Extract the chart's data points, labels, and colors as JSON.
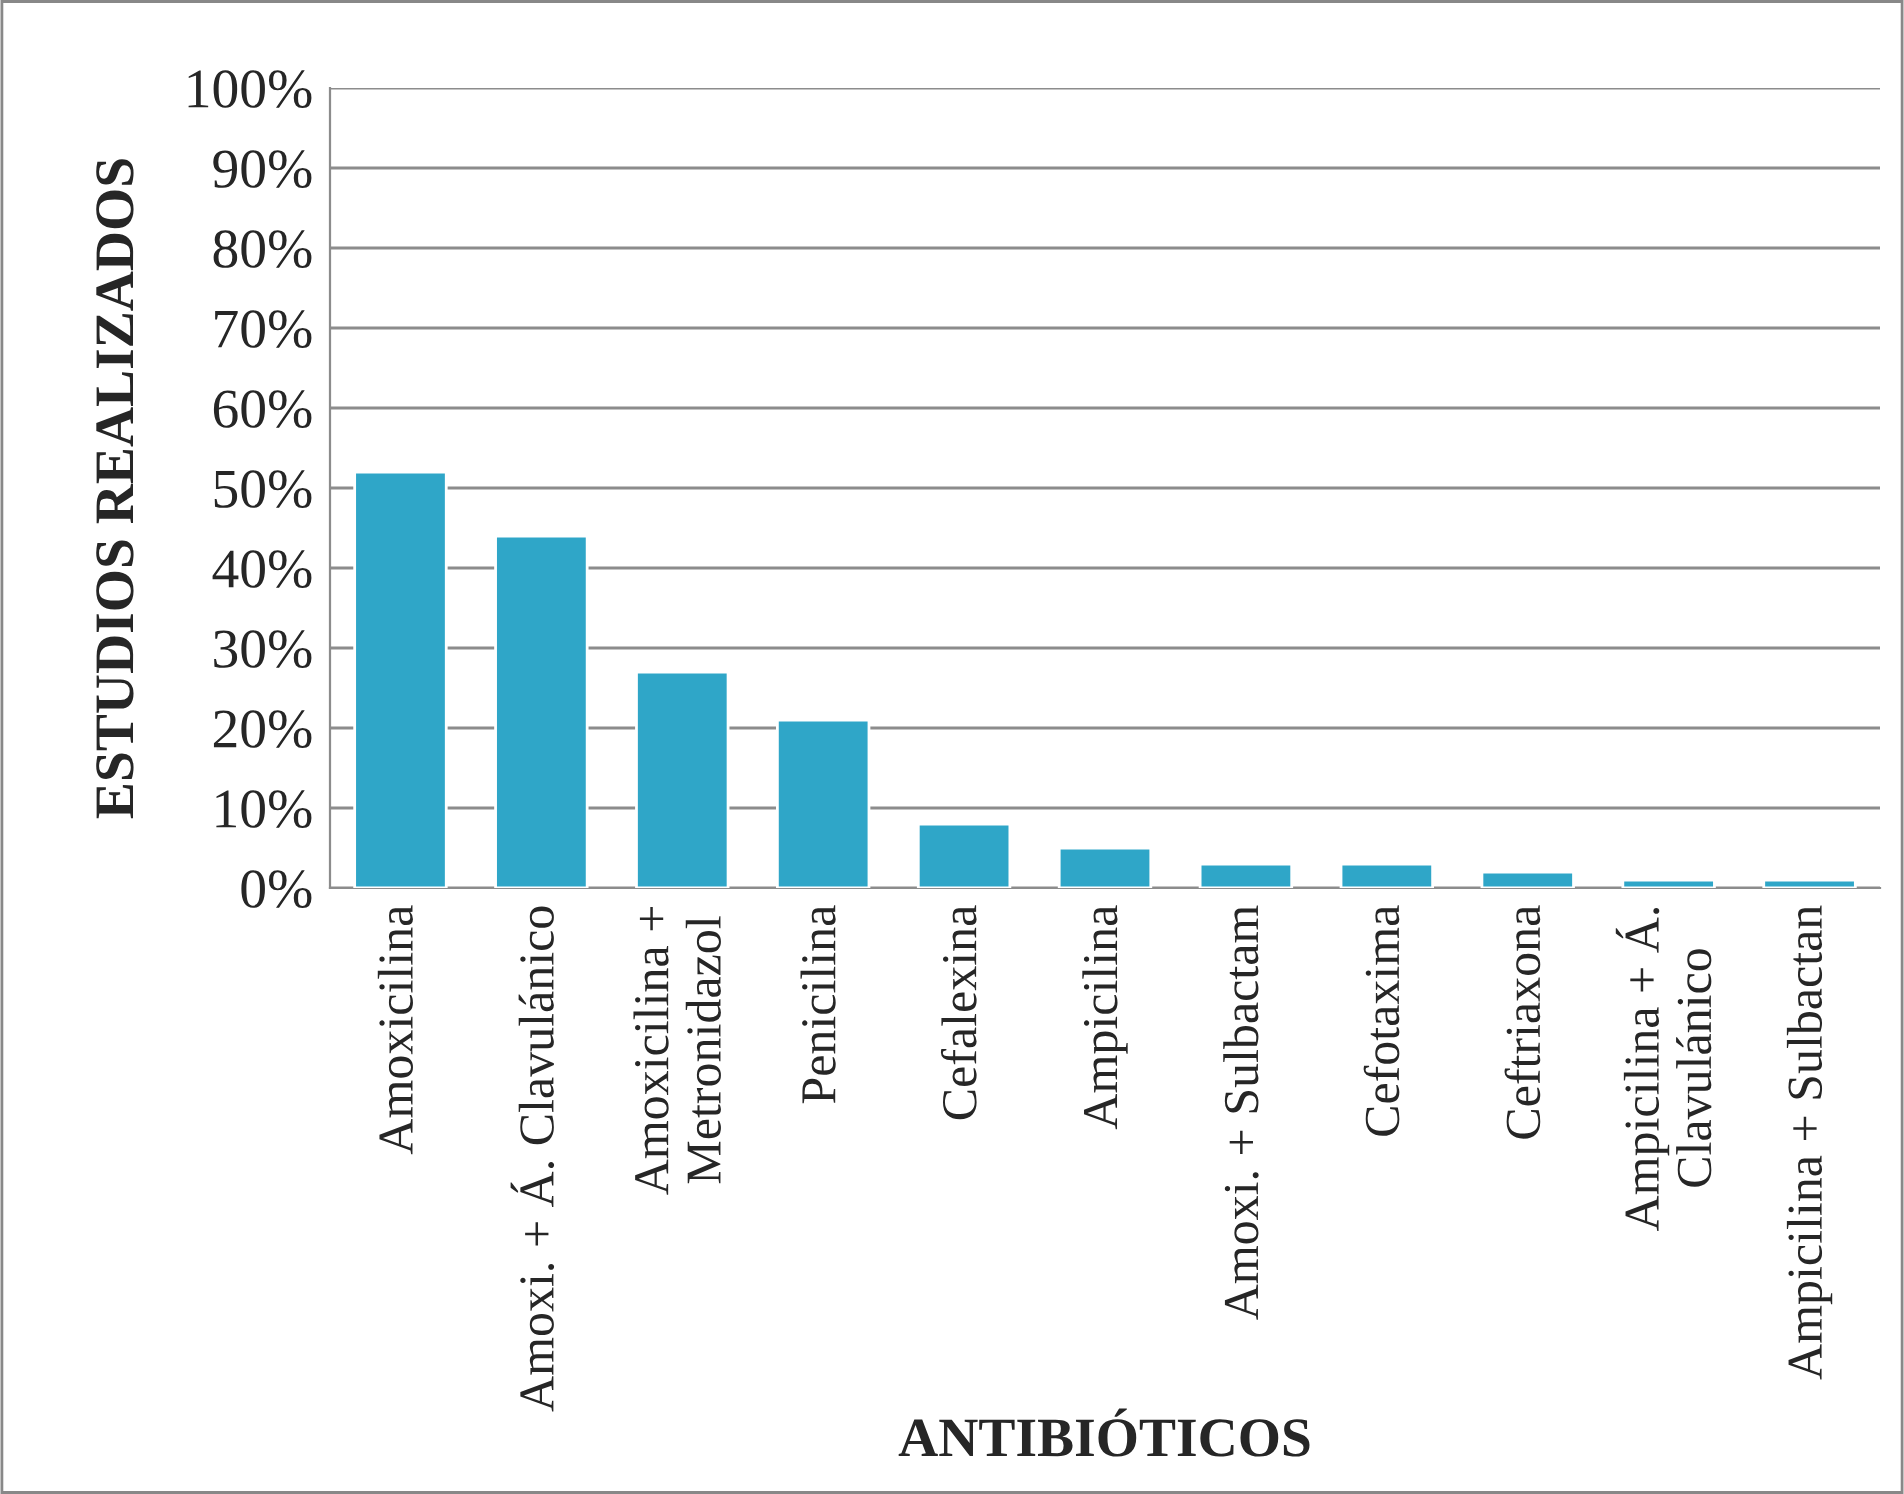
{
  "chart_data": {
    "type": "bar",
    "categories": [
      "Amoxicilina",
      "Amoxi. + Á. Clavulánico",
      "Amoxicilina +\nMetronidazol",
      "Penicilina",
      "Cefalexina",
      "Ampicilina",
      "Amoxi. + Sulbactam",
      "Cefotaxima",
      "Ceftriaxona",
      "Ampicilina + Á.\nClavulánico",
      "Ampicilina + Sulbactan"
    ],
    "values": [
      52,
      44,
      27,
      21,
      8,
      5,
      3,
      3,
      2,
      1,
      1
    ],
    "color": "#2fa6c8",
    "xlabel": "ANTIBIÓTICOS",
    "ylabel": "ESTUDIOS REALIZADOS",
    "ylim": [
      0,
      100
    ],
    "yticks": [
      {
        "value": 0,
        "label": "0%"
      },
      {
        "value": 10,
        "label": "10%"
      },
      {
        "value": 20,
        "label": "20%"
      },
      {
        "value": 30,
        "label": "30%"
      },
      {
        "value": 40,
        "label": "40%"
      },
      {
        "value": 50,
        "label": "50%"
      },
      {
        "value": 60,
        "label": "60%"
      },
      {
        "value": 70,
        "label": "70%"
      },
      {
        "value": 80,
        "label": "80%"
      },
      {
        "value": 90,
        "label": "90%"
      },
      {
        "value": 100,
        "label": "100%"
      }
    ],
    "grid": "y",
    "legend": false
  }
}
